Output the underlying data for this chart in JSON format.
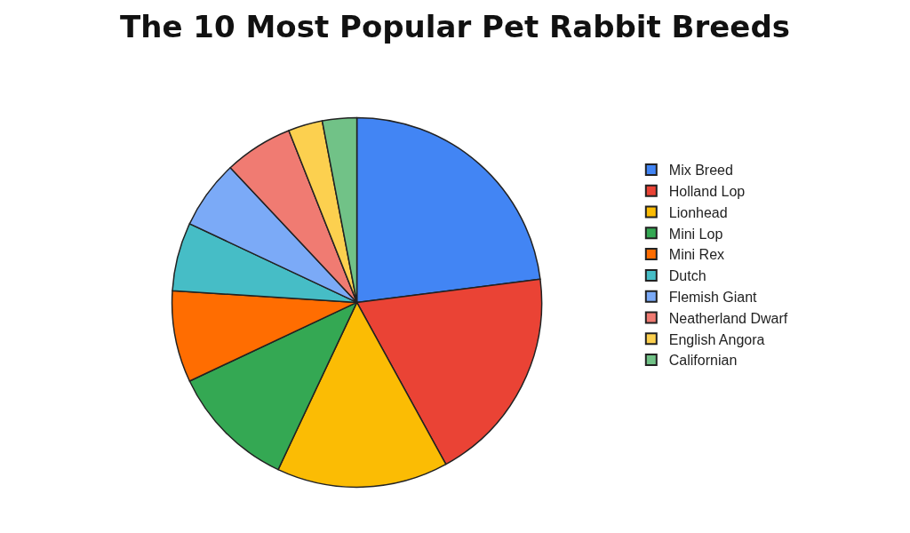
{
  "chart_data": {
    "type": "pie",
    "title": "The 10 Most Popular Pet Rabbit Breeds",
    "categories": [
      "Mix Breed",
      "Holland Lop",
      "Lionhead",
      "Mini Lop",
      "Mini Rex",
      "Dutch",
      "Flemish Giant",
      "Neatherland Dwarf",
      "English Angora",
      "Californian"
    ],
    "values": [
      23,
      19,
      15,
      11,
      8,
      6,
      6,
      6,
      3,
      3
    ],
    "colors": [
      "#4285f4",
      "#ea4335",
      "#fbbc04",
      "#34a853",
      "#ff6d01",
      "#46bdc6",
      "#7baaf7",
      "#f07b72",
      "#fcd04f",
      "#71c287"
    ],
    "legend": "right"
  }
}
